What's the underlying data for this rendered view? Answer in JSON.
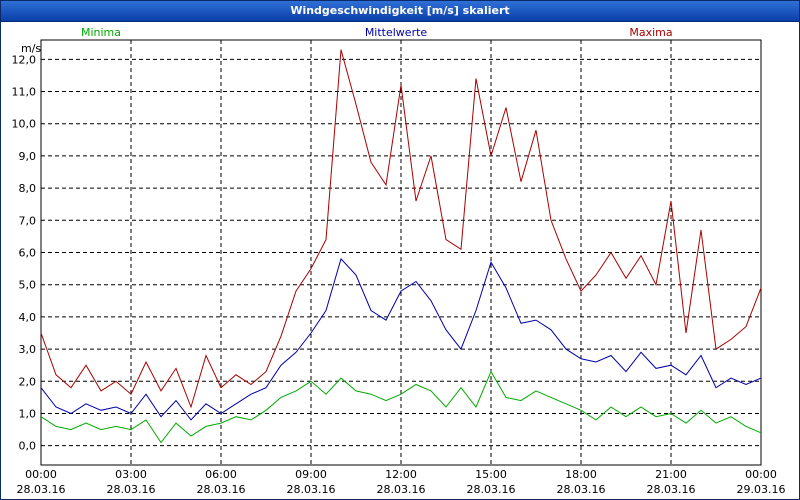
{
  "window": {
    "title": "Windgeschwindigkeit [m/s] skaliert"
  },
  "chart_data": {
    "type": "line",
    "title": "Windgeschwindigkeit [m/s] skaliert",
    "ylabel": "m/s",
    "ylim": [
      -0.6,
      12.6
    ],
    "xlim": [
      0,
      24
    ],
    "grid": true,
    "y_ticks": [
      "0,0",
      "1,0",
      "2,0",
      "3,0",
      "4,0",
      "5,0",
      "6,0",
      "7,0",
      "8,0",
      "9,0",
      "10,0",
      "11,0",
      "12,0"
    ],
    "y_tick_values": [
      0,
      1,
      2,
      3,
      4,
      5,
      6,
      7,
      8,
      9,
      10,
      11,
      12
    ],
    "x_ticks": [
      {
        "time": "00:00",
        "date": "28.03.16"
      },
      {
        "time": "03:00",
        "date": "28.03.16"
      },
      {
        "time": "06:00",
        "date": "28.03.16"
      },
      {
        "time": "09:00",
        "date": "28.03.16"
      },
      {
        "time": "12:00",
        "date": "28.03.16"
      },
      {
        "time": "15:00",
        "date": "28.03.16"
      },
      {
        "time": "18:00",
        "date": "28.03.16"
      },
      {
        "time": "21:00",
        "date": "28.03.16"
      },
      {
        "time": "00:00",
        "date": "29.03.16"
      }
    ],
    "x_tick_hours": [
      0,
      3,
      6,
      9,
      12,
      15,
      18,
      21,
      24
    ],
    "series": [
      {
        "name": "Minima",
        "color": "#00aa00",
        "x": [
          0,
          0.5,
          1,
          1.5,
          2,
          2.5,
          3,
          3.5,
          4,
          4.5,
          5,
          5.5,
          6,
          6.5,
          7,
          7.5,
          8,
          8.5,
          9,
          9.5,
          10,
          10.5,
          11,
          11.5,
          12,
          12.5,
          13,
          13.5,
          14,
          14.5,
          15,
          15.5,
          16,
          16.5,
          17,
          17.5,
          18,
          18.5,
          19,
          19.5,
          20,
          20.5,
          21,
          21.5,
          22,
          22.5,
          23,
          23.5,
          24
        ],
        "values": [
          0.9,
          0.6,
          0.5,
          0.7,
          0.5,
          0.6,
          0.5,
          0.8,
          0.1,
          0.7,
          0.3,
          0.6,
          0.7,
          0.9,
          0.8,
          1.1,
          1.5,
          1.7,
          2.0,
          1.6,
          2.1,
          1.7,
          1.6,
          1.4,
          1.6,
          1.9,
          1.7,
          1.2,
          1.8,
          1.2,
          2.3,
          1.5,
          1.4,
          1.7,
          1.5,
          1.3,
          1.1,
          0.8,
          1.2,
          0.9,
          1.2,
          0.9,
          1.0,
          0.7,
          1.1,
          0.7,
          0.9,
          0.6,
          0.4
        ]
      },
      {
        "name": "Mittelwerte",
        "color": "#0000aa",
        "x": [
          0,
          0.5,
          1,
          1.5,
          2,
          2.5,
          3,
          3.5,
          4,
          4.5,
          5,
          5.5,
          6,
          6.5,
          7,
          7.5,
          8,
          8.5,
          9,
          9.5,
          10,
          10.5,
          11,
          11.5,
          12,
          12.5,
          13,
          13.5,
          14,
          14.5,
          15,
          15.5,
          16,
          16.5,
          17,
          17.5,
          18,
          18.5,
          19,
          19.5,
          20,
          20.5,
          21,
          21.5,
          22,
          22.5,
          23,
          23.5,
          24
        ],
        "values": [
          1.8,
          1.2,
          1.0,
          1.3,
          1.1,
          1.2,
          1.0,
          1.6,
          0.9,
          1.4,
          0.8,
          1.3,
          1.0,
          1.3,
          1.6,
          1.8,
          2.5,
          2.9,
          3.5,
          4.2,
          5.8,
          5.3,
          4.2,
          3.9,
          4.8,
          5.1,
          4.5,
          3.6,
          3.0,
          4.2,
          5.7,
          4.9,
          3.8,
          3.9,
          3.6,
          3.0,
          2.7,
          2.6,
          2.8,
          2.3,
          2.9,
          2.4,
          2.5,
          2.2,
          2.8,
          1.8,
          2.1,
          1.9,
          2.1
        ]
      },
      {
        "name": "Maxima",
        "color": "#aa0000",
        "x": [
          0,
          0.5,
          1,
          1.5,
          2,
          2.5,
          3,
          3.5,
          4,
          4.5,
          5,
          5.5,
          6,
          6.5,
          7,
          7.5,
          8,
          8.5,
          9,
          9.5,
          10,
          10.5,
          11,
          11.5,
          12,
          12.5,
          13,
          13.5,
          14,
          14.5,
          15,
          15.5,
          16,
          16.5,
          17,
          17.5,
          18,
          18.5,
          19,
          19.5,
          20,
          20.5,
          21,
          21.5,
          22,
          22.5,
          23,
          23.5,
          24
        ],
        "values": [
          3.5,
          2.2,
          1.8,
          2.5,
          1.7,
          2.0,
          1.6,
          2.6,
          1.7,
          2.4,
          1.2,
          2.8,
          1.8,
          2.2,
          1.9,
          2.3,
          3.4,
          4.8,
          5.5,
          6.4,
          12.3,
          10.6,
          8.8,
          8.1,
          11.2,
          7.6,
          9.0,
          6.4,
          6.1,
          11.4,
          9.0,
          10.5,
          8.2,
          9.8,
          7.0,
          5.8,
          4.8,
          5.3,
          6.0,
          5.2,
          5.9,
          5.0,
          7.6,
          3.5,
          6.7,
          3.0,
          3.3,
          3.7,
          4.9
        ]
      }
    ]
  }
}
